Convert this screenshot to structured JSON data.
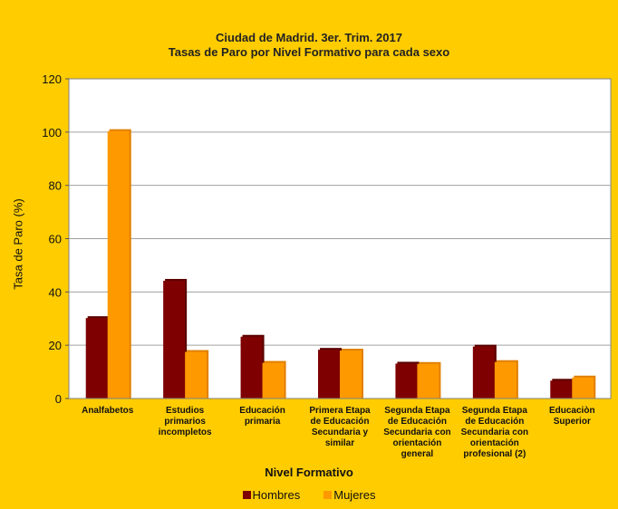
{
  "chart_data": {
    "type": "bar",
    "title": "Ciudad de Madrid. 3er. Trim. 2017",
    "subtitle": "Tasas de Paro por Nivel Formativo para cada sexo",
    "xlabel": "Nivel Formativo",
    "ylabel": "Tasa de Paro (%)",
    "ylim": [
      0,
      120
    ],
    "yticks": [
      0,
      20,
      40,
      60,
      80,
      100,
      120
    ],
    "grid": true,
    "legend_position": "bottom",
    "categories": [
      [
        "Analfabetos"
      ],
      [
        "Estudios",
        "primarios",
        "incompletos"
      ],
      [
        "Educación",
        "primaria"
      ],
      [
        "Primera Etapa",
        "de Educación",
        "Secundaria y",
        "similar"
      ],
      [
        "Segunda Etapa",
        "de Educación",
        "Secundaria con",
        "orientación",
        "general"
      ],
      [
        "Segunda Etapa",
        "de Educación",
        "Secundaria con",
        "orientación",
        "profesional (2)"
      ],
      [
        "Educaciòn",
        "Superior"
      ]
    ],
    "series": [
      {
        "name": "Hombres",
        "color": "#7F0000",
        "values": [
          30.2,
          44.2,
          23.2,
          18.3,
          13.1,
          19.5,
          6.7
        ]
      },
      {
        "name": "Mujeres",
        "color": "#FF9900",
        "values": [
          100.4,
          17.5,
          13.4,
          18.0,
          13.0,
          13.7,
          7.9
        ]
      }
    ],
    "colors": {
      "background": "#FFCC00",
      "plot": "#FFFFFF",
      "grid": "#A0A0A0"
    }
  }
}
